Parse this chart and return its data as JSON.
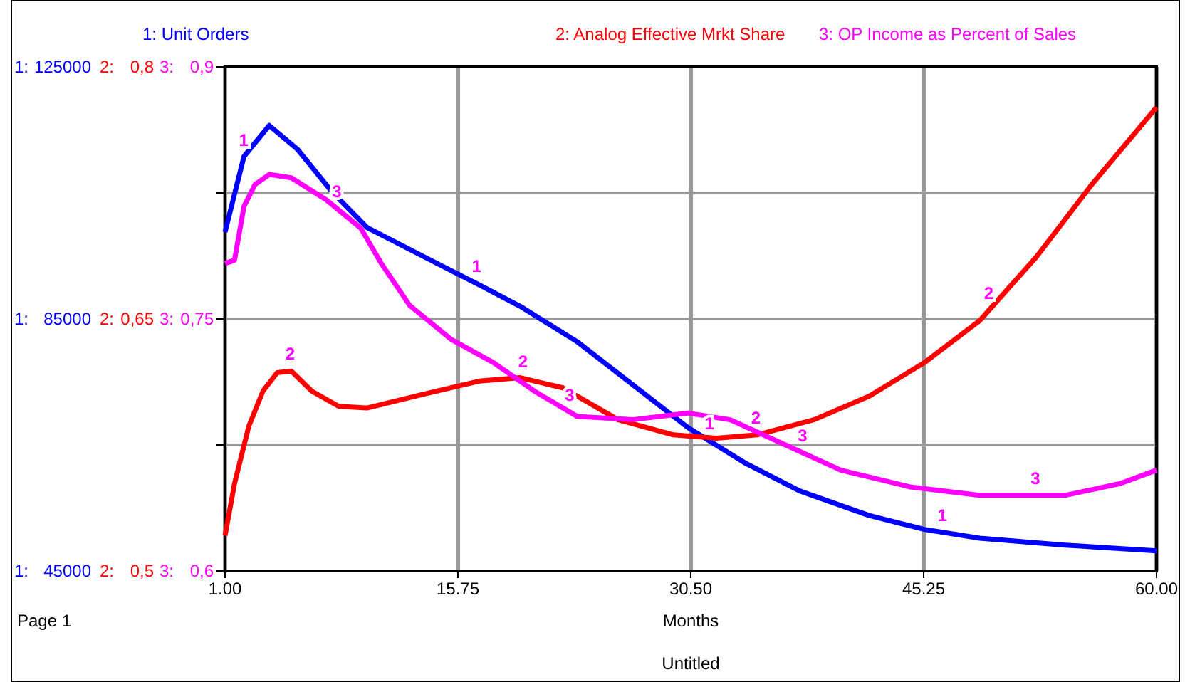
{
  "chart_data": {
    "type": "line",
    "xlabel": "Months",
    "ylabel": "1:",
    "y2label": "2:",
    "y3label": "3:",
    "grid": true,
    "marker": "none",
    "line_style": "solid",
    "x": [
      1,
      2.2,
      3.8,
      5.6,
      7.8,
      10,
      13.5,
      17.1,
      19.7,
      23.3,
      26.8,
      30.3,
      33.9,
      37.4,
      41.8,
      45.3,
      48.8,
      54.2,
      60
    ],
    "xlim": [
      1,
      60
    ],
    "xticks": [
      {
        "value": 1,
        "label": "1.00"
      },
      15.75,
      {
        "value": 30.5,
        "label": "30.50"
      },
      45.25,
      {
        "value": 60,
        "label": "60.00"
      }
    ],
    "ylim": [
      45000,
      125000
    ],
    "yticks": [
      45000,
      {
        "value": 65000,
        "label": null
      },
      85000,
      {
        "value": 105000,
        "label": null
      },
      125000
    ],
    "y2lim": [
      0.5,
      0.8
    ],
    "y2ticks": [
      {
        "value": 0.5,
        "label": "0,5"
      },
      {
        "value": 0.65,
        "label": "0,65"
      },
      {
        "value": 0.8,
        "label": "0,8"
      }
    ],
    "y3lim": [
      0.6,
      0.9
    ],
    "y3ticks": [
      {
        "value": 0.6,
        "label": "0,6"
      },
      {
        "value": 0.75,
        "label": "0,75"
      },
      {
        "value": 0.9,
        "label": "0,9"
      }
    ],
    "series": [
      {
        "name": "1: Unit Orders",
        "color": "#0000ff",
        "values": [
          98800,
          110800,
          115700,
          111900,
          105100,
          99500,
          95000,
          90400,
          87000,
          81400,
          74600,
          67800,
          62200,
          57700,
          53800,
          51600,
          50200,
          49100,
          48200
        ]
      },
      {
        "name": "2: Analog Effective Mrkt Share",
        "color": "#ff0000",
        "axis": "y2",
        "x": [
          1,
          1.6,
          2.5,
          3.4,
          4.3,
          5.2,
          6.5,
          8.2,
          10,
          13.5,
          17.1,
          19.7,
          22.4,
          25.9,
          29.4,
          32.1,
          34.7,
          38.3,
          41.8,
          45.3,
          48.8,
          52.4,
          55.9,
          60
        ],
        "values": [
          0.521,
          0.552,
          0.586,
          0.607,
          0.618,
          0.619,
          0.607,
          0.598,
          0.597,
          0.605,
          0.613,
          0.615,
          0.609,
          0.59,
          0.581,
          0.579,
          0.581,
          0.59,
          0.604,
          0.624,
          0.649,
          0.687,
          0.73,
          0.776
        ]
      },
      {
        "name": "3: OP Income as Percent of Sales",
        "color": "#ff00ff",
        "axis": "y3",
        "x": [
          1,
          1.6,
          2.2,
          2.9,
          3.8,
          5.2,
          7.4,
          9.6,
          10.9,
          12.7,
          15.3,
          18,
          20.6,
          23.3,
          26.8,
          30.3,
          33,
          36.5,
          40,
          44.4,
          48.8,
          54.2,
          57.7,
          60
        ],
        "values": [
          0.783,
          0.785,
          0.817,
          0.83,
          0.836,
          0.834,
          0.821,
          0.804,
          0.783,
          0.758,
          0.738,
          0.724,
          0.707,
          0.692,
          0.69,
          0.694,
          0.69,
          0.675,
          0.66,
          0.65,
          0.645,
          0.645,
          0.652,
          0.66
        ]
      }
    ],
    "annotations": [
      "1",
      "1",
      "1",
      "1",
      "2",
      "2",
      "2",
      "2",
      "3",
      "3",
      "3",
      "3",
      "Page 1",
      "Untitled"
    ]
  }
}
